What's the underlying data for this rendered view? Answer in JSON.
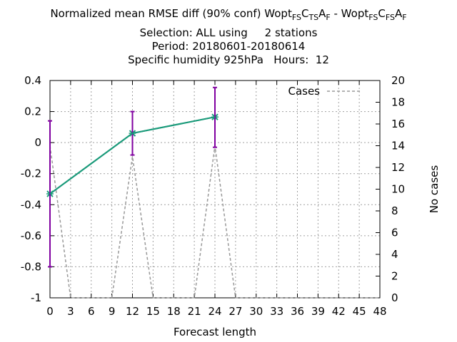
{
  "title": {
    "line1_prefix": "Normalized mean RMSE diff (90% conf) Wopt",
    "exp1": [
      "FS",
      "C",
      "TS",
      "A",
      "F"
    ],
    "separator": " - Wopt",
    "exp2": [
      "FS",
      "C",
      "FS",
      "A",
      "F"
    ],
    "line2": "Selection: ALL using     2 stations",
    "line3": "Period: 20180601-20180614",
    "line4": "Specific humidity 925hPa   Hours:  12"
  },
  "chart_data": {
    "type": "line",
    "xlabel": "Forecast length",
    "ylabel": "",
    "y2label": "No cases",
    "xlim": [
      0,
      48
    ],
    "ylim": [
      -1,
      0.4
    ],
    "y2lim": [
      0,
      20
    ],
    "x_ticks": [
      0,
      3,
      6,
      9,
      12,
      15,
      18,
      21,
      24,
      27,
      30,
      33,
      36,
      39,
      42,
      45,
      48
    ],
    "y_ticks": [
      -1,
      -0.8,
      -0.6,
      -0.4,
      -0.2,
      0,
      0.2,
      0.4
    ],
    "y_tick_labels": [
      "-1",
      "-0.8",
      "-0.6",
      "-0.4",
      "-0.2",
      "0",
      "0.2",
      "0.4"
    ],
    "y2_ticks": [
      0,
      2,
      4,
      6,
      8,
      10,
      12,
      14,
      16,
      18,
      20
    ],
    "grid": true,
    "legend_position": "top-right",
    "series": [
      {
        "name": "",
        "axis": "y",
        "color": "#1a9a7a",
        "x": [
          0,
          12,
          24
        ],
        "y": [
          -0.33,
          0.06,
          0.165
        ]
      },
      {
        "name": "Cases",
        "axis": "y2",
        "color": "#999999",
        "dashed": true,
        "x": [
          0,
          3,
          6,
          9,
          12,
          15,
          18,
          21,
          24,
          27,
          30,
          33,
          36,
          39,
          42,
          45,
          48
        ],
        "y": [
          14,
          0,
          0,
          0,
          13,
          0,
          0,
          0,
          14,
          0,
          0,
          0,
          0,
          0,
          0,
          0,
          0
        ]
      }
    ],
    "error_bars": {
      "color": "#8000a0",
      "x": [
        0,
        12,
        24
      ],
      "low": [
        -0.8,
        -0.08,
        -0.03
      ],
      "high": [
        0.14,
        0.2,
        0.355
      ]
    }
  }
}
